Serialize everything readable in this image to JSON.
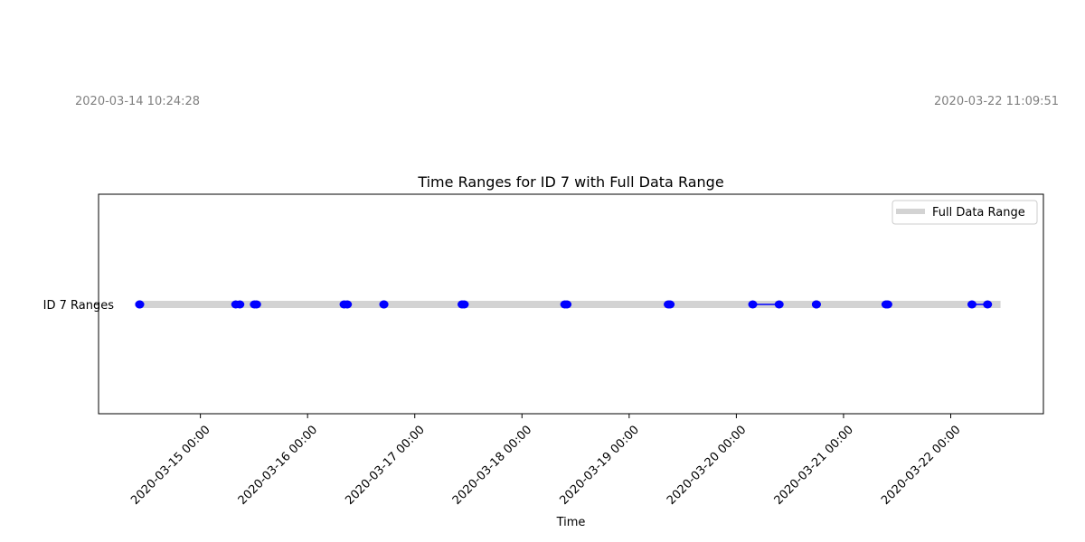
{
  "annotations": {
    "start_label": "2020-03-14 10:24:28",
    "end_label": "2020-03-22 11:09:51"
  },
  "chart_data": {
    "type": "scatter",
    "title": "Time Ranges for ID 7 with Full Data Range",
    "xlabel": "Time",
    "ylabel": "",
    "y_categories": [
      "ID 7 Ranges"
    ],
    "x_ticks": [
      "2020-03-15 00:00",
      "2020-03-16 00:00",
      "2020-03-17 00:00",
      "2020-03-18 00:00",
      "2020-03-19 00:00",
      "2020-03-20 00:00",
      "2020-03-21 00:00",
      "2020-03-22 00:00"
    ],
    "xlim": [
      "2020-03-14 01:12",
      "2020-03-22 20:45"
    ],
    "full_range": {
      "name": "Full Data Range",
      "start": "2020-03-14 10:24",
      "end": "2020-03-22 11:09",
      "color": "#d3d3d3"
    },
    "ranges": [
      {
        "start": "2020-03-14 10:24",
        "end": "2020-03-14 10:24"
      },
      {
        "start": "2020-03-15 07:55",
        "end": "2020-03-15 08:50"
      },
      {
        "start": "2020-03-15 12:05",
        "end": "2020-03-15 12:35"
      },
      {
        "start": "2020-03-16 08:10",
        "end": "2020-03-16 08:55"
      },
      {
        "start": "2020-03-16 17:05",
        "end": "2020-03-16 17:05"
      },
      {
        "start": "2020-03-17 10:35",
        "end": "2020-03-17 11:05"
      },
      {
        "start": "2020-03-18 09:35",
        "end": "2020-03-18 10:05"
      },
      {
        "start": "2020-03-19 08:45",
        "end": "2020-03-19 09:10"
      },
      {
        "start": "2020-03-20 03:40",
        "end": "2020-03-20 09:35"
      },
      {
        "start": "2020-03-20 17:55",
        "end": "2020-03-20 17:55"
      },
      {
        "start": "2020-03-21 09:30",
        "end": "2020-03-21 09:55"
      },
      {
        "start": "2020-03-22 04:45",
        "end": "2020-03-22 08:15"
      }
    ],
    "series_color": "#0000ff",
    "grid": false,
    "legend": "top-right"
  }
}
